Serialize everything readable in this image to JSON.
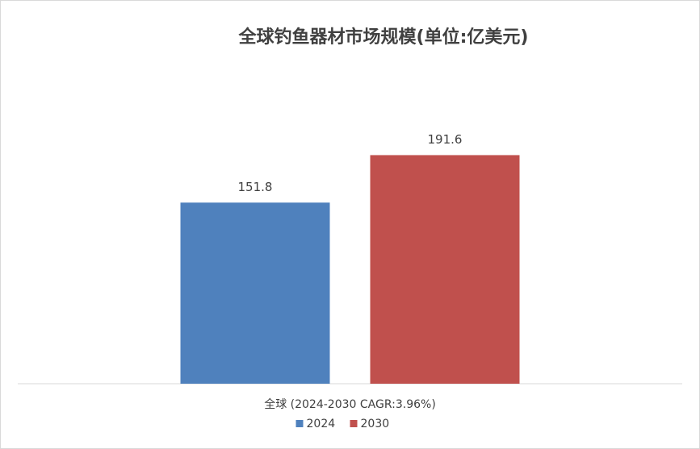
{
  "chart_data": {
    "type": "bar",
    "title": "全球钓鱼器材市场规模(单位:亿美元)",
    "categories": [
      "全球 (2024-2030 CAGR:3.96%)"
    ],
    "series": [
      {
        "name": "2024",
        "color": "#4f81bd",
        "values": [
          151.8
        ]
      },
      {
        "name": "2030",
        "color": "#c0504d",
        "values": [
          191.6
        ]
      }
    ],
    "ylim": [
      0,
      250
    ],
    "legend": "bottom"
  }
}
